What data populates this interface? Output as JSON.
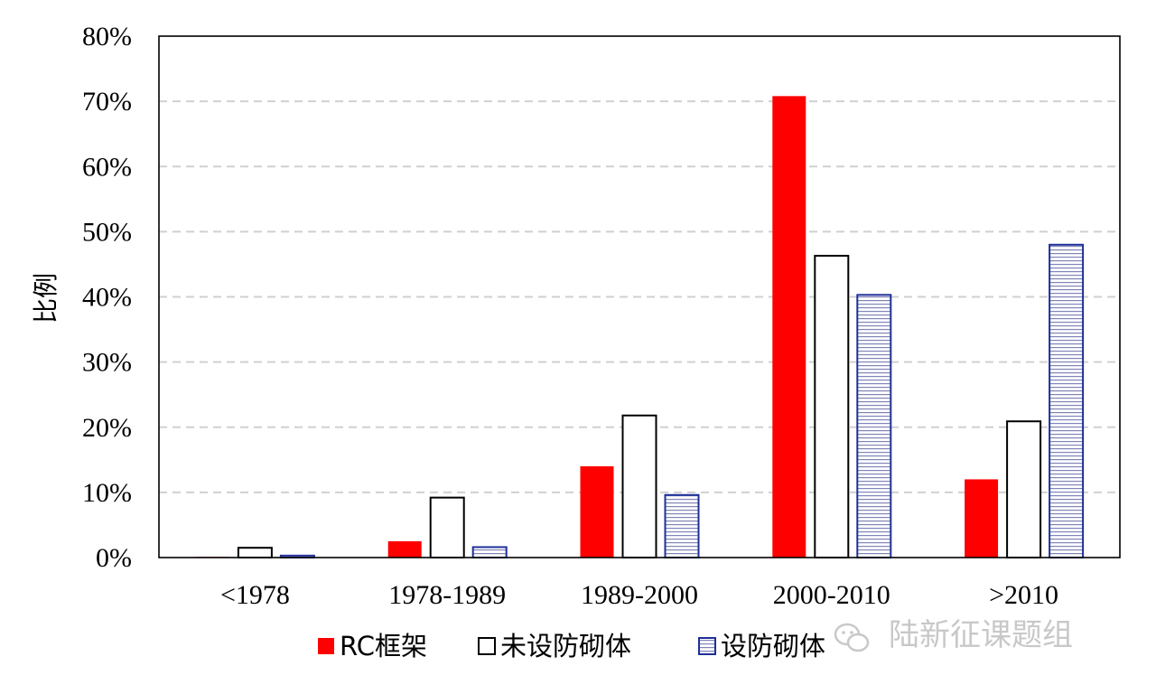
{
  "chart_data": {
    "type": "bar",
    "title": "",
    "xlabel": "",
    "ylabel": "比例",
    "ylim": [
      0,
      80
    ],
    "yticks": [
      "0%",
      "10%",
      "20%",
      "30%",
      "40%",
      "50%",
      "60%",
      "70%",
      "80%"
    ],
    "categories": [
      "<1978",
      "1978-1989",
      "1989-2000",
      "2000-2010",
      ">2010"
    ],
    "series": [
      {
        "name": "RC框架",
        "values": [
          0.1,
          2.5,
          14.0,
          70.8,
          12.0
        ],
        "color": "#ff0000",
        "pattern": "solid"
      },
      {
        "name": "未设防砌体",
        "values": [
          1.5,
          9.2,
          21.8,
          46.3,
          20.9
        ],
        "color": "#ffffff",
        "pattern": "outline"
      },
      {
        "name": "设防砌体",
        "values": [
          0.3,
          1.6,
          9.6,
          40.3,
          48.0
        ],
        "color": "#1f2f99",
        "pattern": "horizontal-lines"
      }
    ],
    "grid": true,
    "legend_position": "bottom"
  },
  "watermark": {
    "text": "陆新征课题组",
    "icon": "wechat-icon"
  }
}
